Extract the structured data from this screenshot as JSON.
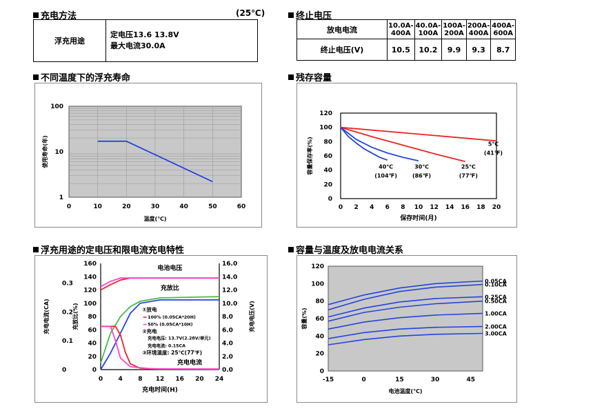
{
  "sections": {
    "charge_method": {
      "title": "充电方法",
      "temp_note": "(25℃)",
      "label": "浮充用途",
      "line1": "定电压13.6 13.8V",
      "line2": "最大电流30.0A"
    },
    "cutoff_voltage": {
      "title": "终止电压",
      "row1_label": "放电电流",
      "row2_label": "终止电压(V)",
      "headers": [
        "10.0A-\n400A",
        "40.0A-\n100A",
        "100A-\n200A",
        "200A-\n400A",
        "400A-\n600A"
      ],
      "values": [
        "10.5",
        "10.2",
        "9.9",
        "9.3",
        "8.7"
      ]
    },
    "life_title": "不同温度下的浮充寿命",
    "residual_title": "残存容量",
    "charge_char_title": "浮充用途的定电压和限电流充电特性",
    "capacity_temp_title": "容量与温度及放电电流关系"
  },
  "colors": {
    "blue": "#2244e0",
    "red": "#ee2222",
    "green": "#44bb44",
    "magenta": "#ff44cc",
    "plot_bg": "#c8c8c8",
    "panel_bg": "#ffffff"
  },
  "chart_data": [
    {
      "id": "float-life",
      "type": "line",
      "xlabel": "温度(℃)",
      "ylabel": "使用寿命(年)",
      "x_ticks": [
        "0",
        "10",
        "20",
        "30",
        "40",
        "50",
        "60"
      ],
      "y_ticks": [
        "1",
        "10",
        "100"
      ],
      "xlim": [
        0,
        60
      ],
      "ylim": [
        1,
        100
      ],
      "y_scale": "log",
      "series": [
        {
          "x": [
            10,
            20,
            50
          ],
          "y": [
            17,
            17,
            2.2
          ]
        }
      ]
    },
    {
      "id": "residual-capacity",
      "type": "line",
      "xlabel": "保存时间(月)",
      "ylabel": "容量保存率(%)",
      "x_ticks": [
        "0",
        "2",
        "4",
        "6",
        "8",
        "10",
        "12",
        "14",
        "16",
        "18",
        "20"
      ],
      "y_ticks": [
        "0",
        "20",
        "40",
        "60",
        "80",
        "100",
        "120"
      ],
      "xlim": [
        0,
        20
      ],
      "ylim": [
        0,
        120
      ],
      "series": [
        {
          "label1": "5℃",
          "label2": "(41℉)",
          "x": [
            0,
            20
          ],
          "y": [
            100,
            81
          ]
        },
        {
          "label1": "25℃",
          "label2": "(77℉)",
          "x": [
            0,
            4,
            8,
            12,
            16
          ],
          "y": [
            100,
            87,
            75,
            63,
            52
          ]
        },
        {
          "label1": "30℃",
          "label2": "(86℉)",
          "x": [
            0,
            2,
            4,
            6,
            8,
            10
          ],
          "y": [
            100,
            83,
            72,
            64,
            58,
            53
          ]
        },
        {
          "label1": "40℃",
          "label2": "(104℉)",
          "x": [
            0,
            1,
            2,
            3,
            4,
            5,
            6
          ],
          "y": [
            100,
            87,
            78,
            70,
            64,
            58,
            54
          ]
        }
      ]
    },
    {
      "id": "charge-characteristics",
      "type": "line",
      "xlabel": "充电时间(H)",
      "ylabel_left1": "充电电流(CA)",
      "ylabel_left2": "充放比(%)",
      "ylabel_right": "充电电压(V)",
      "x_ticks": [
        "0",
        "4",
        "8",
        "12",
        "16",
        "20",
        "24"
      ],
      "left_ticks": [
        "0",
        "20",
        "40",
        "60",
        "80",
        "100",
        "120",
        "140",
        "160"
      ],
      "right_ticks": [
        "0.0",
        "2.0",
        "4.0",
        "6.0",
        "8.0",
        "10.0",
        "12.0",
        "14.0",
        "16.0"
      ],
      "ca_ticks": [
        "0",
        "0.1",
        "0.2",
        "0.3"
      ],
      "xlim": [
        0,
        24
      ],
      "ylim": [
        0,
        160
      ],
      "label_voltage": "电池电压",
      "label_ratio": "充放比",
      "label_current": "充电电流",
      "legend": [
        "①放电",
        "100% (0.05CA*20H)",
        "50% (0.05CA*10H)",
        "②充电",
        "充电电压: 13.7V(2.28V/单元)",
        "充电电流: 0.15CA",
        "③环境温度: 25℃(77℉)"
      ],
      "series": [
        {
          "name": "电池电压",
          "x": [
            0,
            2,
            4,
            6,
            24
          ],
          "y": [
            12.0,
            12.8,
            13.5,
            13.8,
            13.8
          ]
        },
        {
          "name": "电池电压",
          "x": [
            0,
            2,
            4,
            24
          ],
          "y": [
            12.5,
            13.3,
            13.8,
            13.8
          ]
        },
        {
          "name": "充放比",
          "x": [
            0,
            2,
            4,
            6,
            8,
            12,
            24
          ],
          "y": [
            10,
            55,
            80,
            95,
            103,
            108,
            110
          ]
        },
        {
          "name": "充放比",
          "x": [
            0,
            2,
            4,
            6,
            8,
            12,
            24
          ],
          "y": [
            0,
            25,
            55,
            85,
            100,
            105,
            105
          ]
        },
        {
          "name": "充电电流",
          "x": [
            0,
            3,
            4,
            5,
            6,
            8,
            12,
            24
          ],
          "y": [
            0.15,
            0.15,
            0.12,
            0.06,
            0.02,
            0.005,
            0.002,
            0.002
          ]
        },
        {
          "name": "充电电流",
          "x": [
            0,
            2,
            3,
            4,
            6,
            10,
            24
          ],
          "y": [
            0.15,
            0.15,
            0.1,
            0.04,
            0.01,
            0.003,
            0.002
          ]
        }
      ]
    },
    {
      "id": "capacity-temperature",
      "type": "line",
      "xlabel": "电池温度(℃)",
      "ylabel": "容量(%)",
      "x_ticks": [
        "-15",
        "0",
        "15",
        "30",
        "45"
      ],
      "y_ticks": [
        "0",
        "20",
        "40",
        "60",
        "80",
        "100",
        "120"
      ],
      "xlim": [
        -15,
        50
      ],
      "ylim": [
        0,
        120
      ],
      "series": [
        {
          "name": "0.05CA",
          "x": [
            -15,
            0,
            15,
            30,
            50
          ],
          "y": [
            76,
            87,
            95,
            100,
            103
          ]
        },
        {
          "name": "0.10CA",
          "x": [
            -15,
            0,
            15,
            30,
            50
          ],
          "y": [
            70,
            82,
            91,
            96,
            99
          ]
        },
        {
          "name": "0.25CA",
          "x": [
            -15,
            0,
            15,
            30,
            50
          ],
          "y": [
            62,
            72,
            79,
            83,
            85
          ]
        },
        {
          "name": "0.50CA",
          "x": [
            -15,
            0,
            15,
            30,
            50
          ],
          "y": [
            57,
            67,
            73,
            77,
            80
          ]
        },
        {
          "name": "1.00CA",
          "x": [
            -15,
            0,
            15,
            30,
            50
          ],
          "y": [
            48,
            56,
            61,
            64,
            66
          ]
        },
        {
          "name": "2.00CA",
          "x": [
            -15,
            0,
            15,
            30,
            50
          ],
          "y": [
            37,
            44,
            48,
            50,
            51
          ]
        },
        {
          "name": "3.00CA",
          "x": [
            -15,
            0,
            15,
            30,
            50
          ],
          "y": [
            30,
            36,
            40,
            42,
            43
          ]
        }
      ]
    }
  ]
}
